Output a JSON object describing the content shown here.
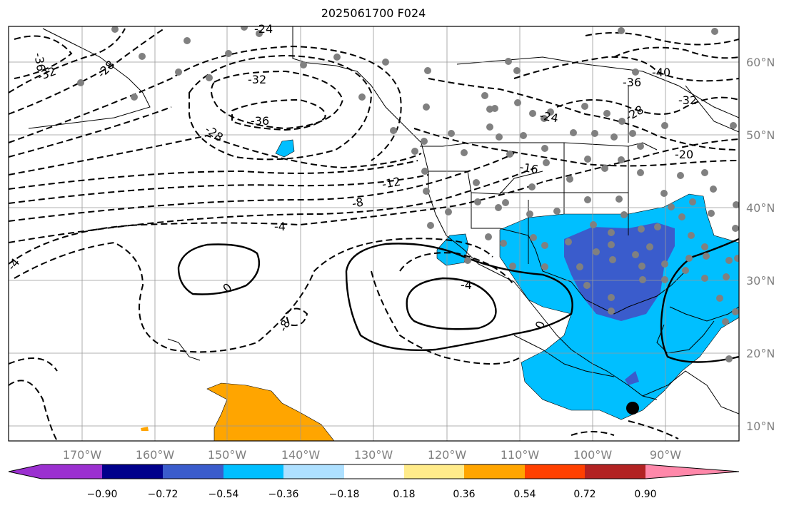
{
  "title": "2025061700 F024",
  "lon_labels": [
    "170°W",
    "160°W",
    "150°W",
    "140°W",
    "130°W",
    "120°W",
    "110°W",
    "100°W",
    "90°W"
  ],
  "lat_labels": [
    "60°N",
    "50°N",
    "40°N",
    "30°N",
    "20°N",
    "10°N"
  ],
  "colorbar": {
    "tick_labels": [
      "−0.90",
      "−0.72",
      "−0.54",
      "−0.36",
      "−0.18",
      "0.18",
      "0.36",
      "0.54",
      "0.72",
      "0.90"
    ],
    "colors": [
      "#9b30d0",
      "#00008b",
      "#3a5ccc",
      "#00bfff",
      "#aee0ff",
      "#ffffff",
      "#ffeb8a",
      "#ffa500",
      "#ff4000",
      "#b22222",
      "#ff88aa"
    ]
  },
  "contour_labels": [
    "-36",
    "-32",
    "-28",
    "-24",
    "-32",
    "-36",
    "-28",
    "-40",
    "-36",
    "-32",
    "-24",
    "-28",
    "-20",
    "-16",
    "-12",
    "-8",
    "-4",
    "0",
    "-4",
    "-8",
    "-4",
    "0"
  ],
  "fill_colors": {
    "light": "#00bfff",
    "dark": "#3a5ccc",
    "orange": "#ffa500",
    "cyan_pale": "#aee0ff"
  }
}
